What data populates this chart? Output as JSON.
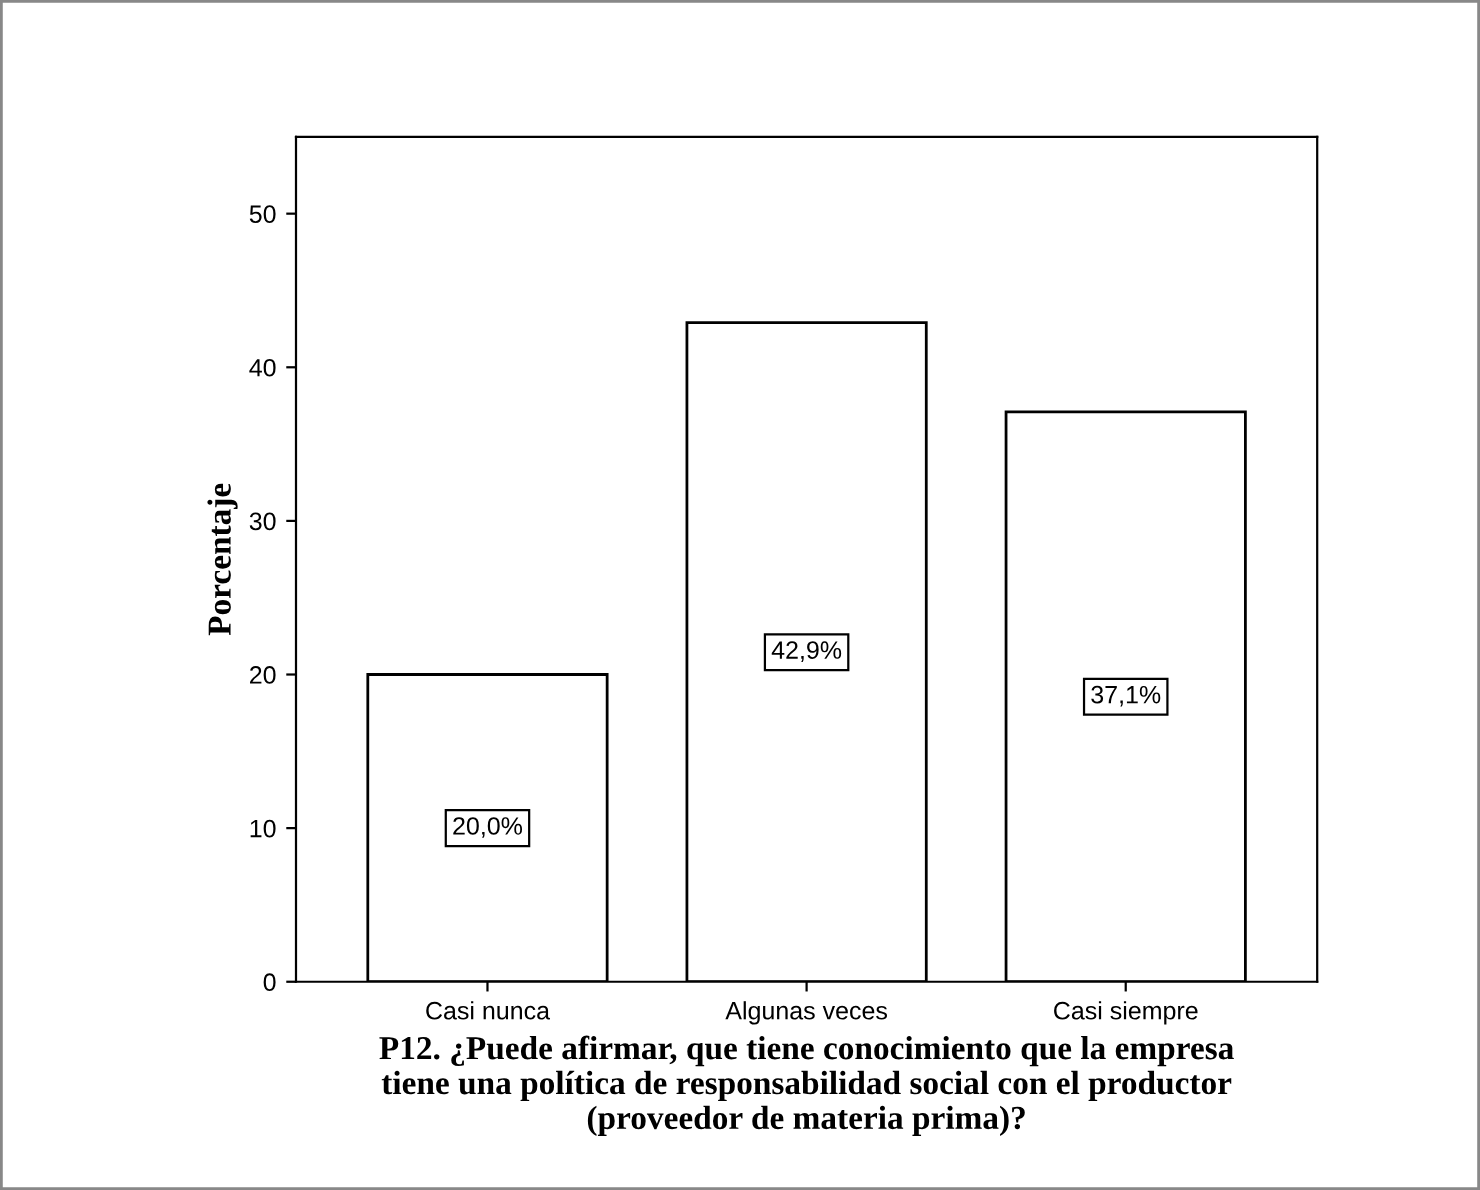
{
  "chart_data": {
    "type": "bar",
    "categories": [
      "Casi nunca",
      "Algunas veces",
      "Casi siempre"
    ],
    "values": [
      20.0,
      42.9,
      37.1
    ],
    "value_labels": [
      "20,0%",
      "42,9%",
      "37,1%"
    ],
    "color": "#ffffff",
    "xlabel": "P12. ¿Puede afirmar, que tiene conocimiento que la empresa\ntiene una política de responsabilidad social con el productor\n(proveedor de materia prima)?",
    "ylabel": "Porcentaje",
    "ylim": [
      0,
      55
    ],
    "yticks": [
      0,
      10,
      20,
      30,
      40,
      50
    ],
    "grid": false,
    "legend": false
  }
}
